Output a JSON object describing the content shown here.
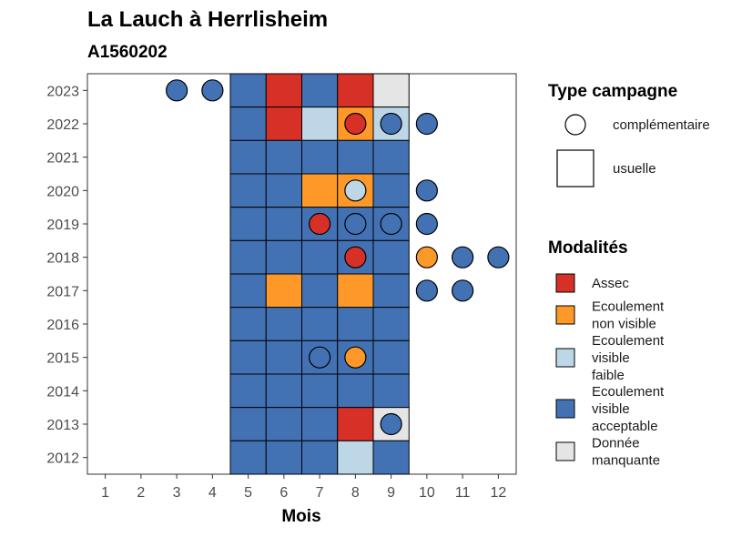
{
  "chart_data": {
    "type": "heatmap",
    "title": "La Lauch à Herrlisheim",
    "subtitle": "A1560202",
    "xlabel": "Mois",
    "ylabel": "",
    "x_ticks": [
      "1",
      "2",
      "3",
      "4",
      "5",
      "6",
      "7",
      "8",
      "9",
      "10",
      "11",
      "12"
    ],
    "y_ticks": [
      "2012",
      "2013",
      "2014",
      "2015",
      "2016",
      "2017",
      "2018",
      "2019",
      "2020",
      "2021",
      "2022",
      "2023"
    ],
    "xlim": [
      0.5,
      12.5
    ],
    "ylim": [
      2011.5,
      2023.5
    ],
    "legend_shape": {
      "title": "Type campagne",
      "items": [
        {
          "shape": "circle",
          "label": "complémentaire"
        },
        {
          "shape": "square",
          "label": "usuelle"
        }
      ]
    },
    "legend_fill": {
      "title": "Modalités",
      "items": [
        {
          "key": "assec",
          "label": [
            "Assec"
          ],
          "color": "#d73027"
        },
        {
          "key": "nonvisible",
          "label": [
            "Ecoulement",
            "non visible"
          ],
          "color": "#fe9929"
        },
        {
          "key": "faible",
          "label": [
            "Ecoulement",
            "visible",
            "faible"
          ],
          "color": "#bdd7e7"
        },
        {
          "key": "acceptable",
          "label": [
            "Ecoulement",
            "visible",
            "acceptable"
          ],
          "color": "#4372b4"
        },
        {
          "key": "manquante",
          "label": [
            "Donnée",
            "manquante"
          ],
          "color": "#e5e5e5"
        }
      ]
    },
    "squares": [
      {
        "year": 2023,
        "month": 5,
        "m": "acceptable"
      },
      {
        "year": 2023,
        "month": 6,
        "m": "assec"
      },
      {
        "year": 2023,
        "month": 7,
        "m": "acceptable"
      },
      {
        "year": 2023,
        "month": 8,
        "m": "assec"
      },
      {
        "year": 2023,
        "month": 9,
        "m": "manquante"
      },
      {
        "year": 2022,
        "month": 5,
        "m": "acceptable"
      },
      {
        "year": 2022,
        "month": 6,
        "m": "assec"
      },
      {
        "year": 2022,
        "month": 7,
        "m": "faible"
      },
      {
        "year": 2022,
        "month": 8,
        "m": "nonvisible"
      },
      {
        "year": 2022,
        "month": 9,
        "m": "faible"
      },
      {
        "year": 2021,
        "month": 5,
        "m": "acceptable"
      },
      {
        "year": 2021,
        "month": 6,
        "m": "acceptable"
      },
      {
        "year": 2021,
        "month": 7,
        "m": "acceptable"
      },
      {
        "year": 2021,
        "month": 8,
        "m": "acceptable"
      },
      {
        "year": 2021,
        "month": 9,
        "m": "acceptable"
      },
      {
        "year": 2020,
        "month": 5,
        "m": "acceptable"
      },
      {
        "year": 2020,
        "month": 6,
        "m": "acceptable"
      },
      {
        "year": 2020,
        "month": 7,
        "m": "nonvisible"
      },
      {
        "year": 2020,
        "month": 8,
        "m": "nonvisible"
      },
      {
        "year": 2020,
        "month": 9,
        "m": "acceptable"
      },
      {
        "year": 2019,
        "month": 5,
        "m": "acceptable"
      },
      {
        "year": 2019,
        "month": 6,
        "m": "acceptable"
      },
      {
        "year": 2019,
        "month": 7,
        "m": "acceptable"
      },
      {
        "year": 2019,
        "month": 8,
        "m": "acceptable"
      },
      {
        "year": 2019,
        "month": 9,
        "m": "acceptable"
      },
      {
        "year": 2018,
        "month": 5,
        "m": "acceptable"
      },
      {
        "year": 2018,
        "month": 6,
        "m": "acceptable"
      },
      {
        "year": 2018,
        "month": 7,
        "m": "acceptable"
      },
      {
        "year": 2018,
        "month": 8,
        "m": "acceptable"
      },
      {
        "year": 2018,
        "month": 9,
        "m": "acceptable"
      },
      {
        "year": 2017,
        "month": 5,
        "m": "acceptable"
      },
      {
        "year": 2017,
        "month": 6,
        "m": "nonvisible"
      },
      {
        "year": 2017,
        "month": 7,
        "m": "acceptable"
      },
      {
        "year": 2017,
        "month": 8,
        "m": "nonvisible"
      },
      {
        "year": 2017,
        "month": 9,
        "m": "acceptable"
      },
      {
        "year": 2016,
        "month": 5,
        "m": "acceptable"
      },
      {
        "year": 2016,
        "month": 6,
        "m": "acceptable"
      },
      {
        "year": 2016,
        "month": 7,
        "m": "acceptable"
      },
      {
        "year": 2016,
        "month": 8,
        "m": "acceptable"
      },
      {
        "year": 2016,
        "month": 9,
        "m": "acceptable"
      },
      {
        "year": 2015,
        "month": 5,
        "m": "acceptable"
      },
      {
        "year": 2015,
        "month": 6,
        "m": "acceptable"
      },
      {
        "year": 2015,
        "month": 7,
        "m": "acceptable"
      },
      {
        "year": 2015,
        "month": 8,
        "m": "acceptable"
      },
      {
        "year": 2015,
        "month": 9,
        "m": "acceptable"
      },
      {
        "year": 2014,
        "month": 5,
        "m": "acceptable"
      },
      {
        "year": 2014,
        "month": 6,
        "m": "acceptable"
      },
      {
        "year": 2014,
        "month": 7,
        "m": "acceptable"
      },
      {
        "year": 2014,
        "month": 8,
        "m": "acceptable"
      },
      {
        "year": 2014,
        "month": 9,
        "m": "acceptable"
      },
      {
        "year": 2013,
        "month": 5,
        "m": "acceptable"
      },
      {
        "year": 2013,
        "month": 6,
        "m": "acceptable"
      },
      {
        "year": 2013,
        "month": 7,
        "m": "acceptable"
      },
      {
        "year": 2013,
        "month": 8,
        "m": "assec"
      },
      {
        "year": 2013,
        "month": 9,
        "m": "manquante"
      },
      {
        "year": 2012,
        "month": 5,
        "m": "acceptable"
      },
      {
        "year": 2012,
        "month": 6,
        "m": "acceptable"
      },
      {
        "year": 2012,
        "month": 7,
        "m": "acceptable"
      },
      {
        "year": 2012,
        "month": 8,
        "m": "faible"
      },
      {
        "year": 2012,
        "month": 9,
        "m": "acceptable"
      }
    ],
    "circles": [
      {
        "year": 2023,
        "month": 3,
        "m": "acceptable"
      },
      {
        "year": 2023,
        "month": 4,
        "m": "acceptable"
      },
      {
        "year": 2022,
        "month": 8,
        "m": "assec"
      },
      {
        "year": 2022,
        "month": 9,
        "m": "acceptable"
      },
      {
        "year": 2022,
        "month": 10,
        "m": "acceptable"
      },
      {
        "year": 2020,
        "month": 8,
        "m": "faible"
      },
      {
        "year": 2020,
        "month": 10,
        "m": "acceptable"
      },
      {
        "year": 2019,
        "month": 7,
        "m": "assec"
      },
      {
        "year": 2019,
        "month": 8,
        "m": "acceptable"
      },
      {
        "year": 2019,
        "month": 9,
        "m": "acceptable"
      },
      {
        "year": 2019,
        "month": 10,
        "m": "acceptable"
      },
      {
        "year": 2018,
        "month": 8,
        "m": "assec"
      },
      {
        "year": 2018,
        "month": 10,
        "m": "nonvisible"
      },
      {
        "year": 2018,
        "month": 11,
        "m": "acceptable"
      },
      {
        "year": 2018,
        "month": 12,
        "m": "acceptable"
      },
      {
        "year": 2017,
        "month": 10,
        "m": "acceptable"
      },
      {
        "year": 2017,
        "month": 11,
        "m": "acceptable"
      },
      {
        "year": 2015,
        "month": 7,
        "m": "acceptable"
      },
      {
        "year": 2015,
        "month": 8,
        "m": "nonvisible"
      },
      {
        "year": 2013,
        "month": 9,
        "m": "acceptable"
      }
    ]
  }
}
